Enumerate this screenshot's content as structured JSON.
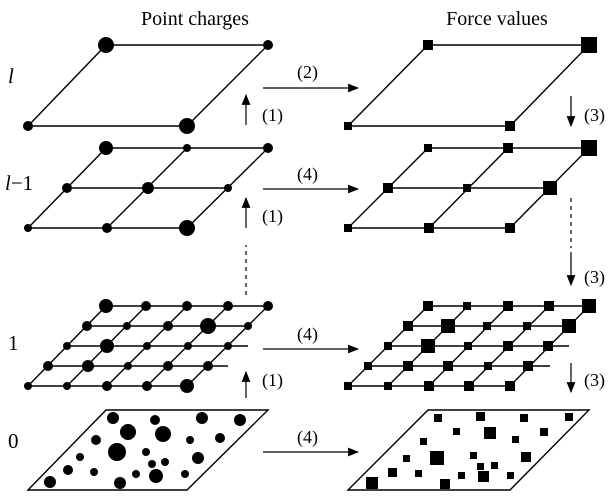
{
  "headers": {
    "left": "Point charges",
    "right": "Force values"
  },
  "levels": {
    "top": {
      "italic": "l",
      "suffix": ""
    },
    "second": {
      "italic": "l",
      "suffix": "−1"
    },
    "one": {
      "italic": "",
      "suffix": "1"
    },
    "zero": {
      "italic": "",
      "suffix": "0"
    }
  },
  "steps": {
    "s2": "(2)",
    "s4_l1": "(4)",
    "s4_1": "(4)",
    "s4_0": "(4)",
    "s1_a": "(1)",
    "s1_b": "(1)",
    "s1_c": "(1)",
    "s3_a": "(3)",
    "s3_b": "(3)",
    "s3_c": "(3)"
  }
}
